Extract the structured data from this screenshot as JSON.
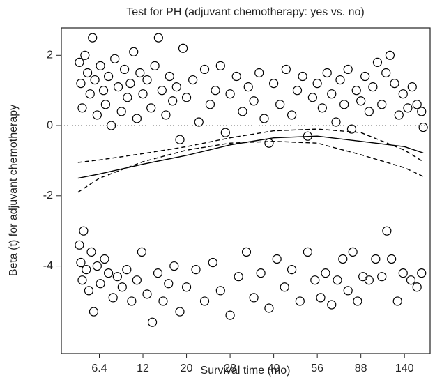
{
  "chart_data": {
    "type": "scatter",
    "title": "Test for PH (adjuvant chemotherapy: yes vs. no)",
    "xlabel": "Survival time (mo)",
    "ylabel": "Beta (t) for adjuvant chemotherapy",
    "xscale": "tick-interpolated log",
    "xlim": [
      3.7,
      184
    ],
    "xticks": [
      6.4,
      12,
      20,
      28,
      40,
      56,
      88,
      140
    ],
    "ylim": [
      -6.49,
      2.78
    ],
    "yticks": [
      2,
      0,
      -2,
      -4
    ],
    "reference_line": 0,
    "color": "#000000",
    "points": {
      "x": [
        4.8,
        4.9,
        5,
        5.2,
        5.4,
        5.6,
        5.8,
        6,
        6.2,
        6.5,
        6.8,
        7,
        7.3,
        7.6,
        8,
        8.4,
        8.8,
        9.2,
        9.6,
        10,
        10.5,
        11,
        11.5,
        12,
        12.6,
        13.2,
        13.8,
        14.4,
        15,
        15.7,
        16.4,
        17,
        17.8,
        18.5,
        19.2,
        20,
        21,
        22,
        23,
        24,
        25,
        26,
        27,
        28,
        29.5,
        31,
        32.5,
        34,
        35.5,
        37,
        38.5,
        40,
        42,
        44,
        46,
        48,
        50,
        52,
        54,
        56,
        59,
        62,
        65,
        68,
        71,
        74,
        77,
        80,
        84,
        88,
        92,
        96,
        100,
        105,
        110,
        115,
        120,
        126,
        132,
        138,
        145,
        152,
        160,
        168,
        171,
        4.8,
        4.9,
        5,
        5.1,
        5.3,
        5.5,
        5.7,
        5.9,
        6.2,
        6.5,
        6.9,
        7.3,
        7.8,
        8.3,
        8.9,
        9.5,
        10.2,
        11,
        11.8,
        12.6,
        13.4,
        14.3,
        15.2,
        16.2,
        17.3,
        18.5,
        20,
        21.5,
        23,
        24.5,
        26,
        28,
        30,
        32,
        34,
        36,
        38.5,
        41,
        43.5,
        46,
        49,
        52,
        55,
        58,
        61,
        65,
        69,
        73,
        77,
        81,
        85,
        90,
        96,
        103,
        110,
        116,
        122,
        130,
        138,
        150,
        160,
        168
      ],
      "values": [
        1.8,
        1.2,
        0.5,
        2.0,
        1.5,
        0.9,
        2.5,
        1.3,
        0.3,
        1.7,
        1.0,
        0.6,
        1.4,
        0.0,
        1.9,
        1.1,
        0.4,
        1.6,
        0.8,
        1.2,
        2.1,
        0.2,
        1.5,
        0.9,
        1.3,
        0.5,
        1.7,
        2.5,
        1.0,
        0.3,
        1.4,
        0.7,
        1.1,
        -0.4,
        2.2,
        0.8,
        1.3,
        0.1,
        1.6,
        0.6,
        1.0,
        1.7,
        -0.2,
        0.9,
        1.4,
        0.4,
        1.1,
        0.7,
        1.5,
        0.2,
        -0.5,
        1.2,
        0.6,
        1.6,
        0.3,
        1.0,
        1.4,
        -0.3,
        0.8,
        1.2,
        0.5,
        1.5,
        0.9,
        0.1,
        1.3,
        0.6,
        1.6,
        -0.1,
        1.0,
        0.7,
        1.4,
        0.4,
        1.1,
        1.8,
        0.6,
        1.5,
        2.0,
        1.2,
        0.3,
        0.9,
        0.5,
        1.1,
        0.6,
        0.4,
        -0.05,
        -3.4,
        -3.9,
        -4.4,
        -3.0,
        -4.1,
        -4.7,
        -3.6,
        -5.3,
        -4.0,
        -4.5,
        -3.8,
        -4.2,
        -4.9,
        -4.3,
        -4.6,
        -4.1,
        -5.0,
        -4.4,
        -3.6,
        -4.8,
        -5.6,
        -4.2,
        -5.0,
        -4.5,
        -4.0,
        -5.3,
        -4.6,
        -4.1,
        -5.0,
        -3.9,
        -4.7,
        -5.4,
        -4.3,
        -3.6,
        -4.9,
        -4.2,
        -5.2,
        -3.8,
        -4.6,
        -4.1,
        -5.0,
        -3.6,
        -4.4,
        -4.9,
        -4.2,
        -5.1,
        -4.4,
        -3.8,
        -4.7,
        -3.6,
        -5.0,
        -4.3,
        -4.4,
        -3.8,
        -4.3,
        -3.0,
        -3.8,
        -5.0,
        -4.2,
        -4.4,
        -4.6,
        -4.2
      ]
    },
    "lines": [
      {
        "style": "solid",
        "x": [
          4.7,
          6.4,
          12,
          20,
          28,
          40,
          56,
          88,
          140,
          171
        ],
        "values": [
          -1.5,
          -1.38,
          -1.1,
          -0.85,
          -0.55,
          -0.35,
          -0.3,
          -0.45,
          -0.6,
          -0.78
        ]
      },
      {
        "style": "dashed",
        "x": [
          4.7,
          6.4,
          12,
          20,
          28,
          40,
          56,
          88,
          140,
          171
        ],
        "values": [
          -1.05,
          -0.98,
          -0.8,
          -0.6,
          -0.35,
          -0.15,
          -0.1,
          -0.2,
          -0.7,
          -1.03
        ]
      },
      {
        "style": "dashed",
        "x": [
          4.7,
          6.4,
          12,
          20,
          28,
          40,
          56,
          88,
          140,
          171
        ],
        "values": [
          -1.9,
          -1.5,
          -1.03,
          -0.7,
          -0.5,
          -0.45,
          -0.5,
          -0.83,
          -1.2,
          -1.45
        ]
      }
    ]
  }
}
